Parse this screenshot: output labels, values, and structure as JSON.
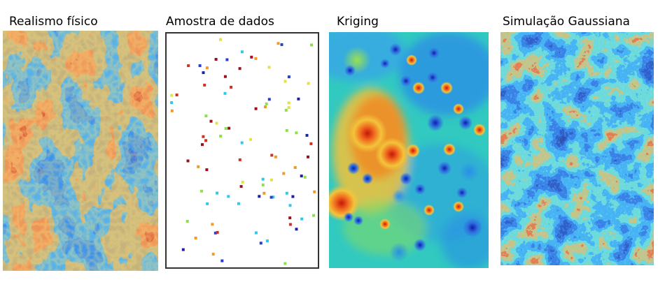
{
  "panels": [
    {
      "id": "realismo",
      "title": "Realismo físico"
    },
    {
      "id": "amostra",
      "title": "Amostra de dados"
    },
    {
      "id": "kriging",
      "title": "Kriging"
    },
    {
      "id": "gaussiana",
      "title": "Simulação Gaussiana"
    }
  ],
  "colors": {
    "deep_blue": "#0a1f9a",
    "blue": "#1d4fd6",
    "cyan": "#2ec8e8",
    "green": "#7fdc5a",
    "yellow": "#f2e23a",
    "orange": "#f08a24",
    "red": "#d42a12",
    "dark_red": "#8c0d08"
  }
}
